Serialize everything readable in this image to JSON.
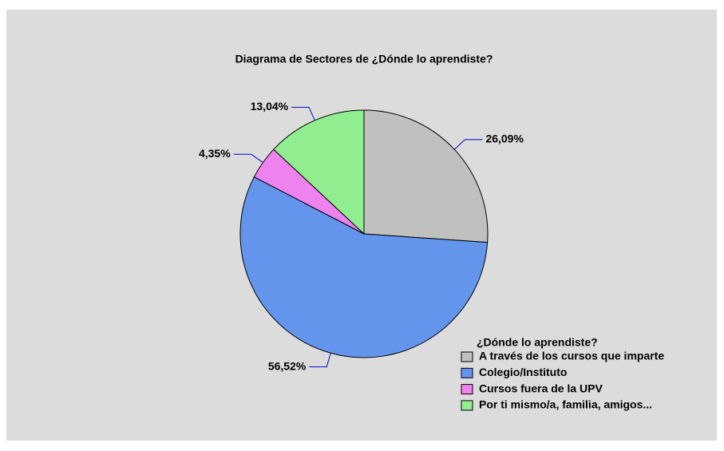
{
  "chart_data": {
    "type": "pie",
    "title": "Diagrama de Sectores de ¿Dónde lo aprendiste?",
    "legend_title": "¿Dónde lo aprendiste?",
    "categories": [
      "A través de los cursos que imparte",
      "Colegio/Instituto",
      "Cursos fuera de la UPV",
      "Por ti mismo/a, familia, amigos..."
    ],
    "values": [
      26.09,
      56.52,
      4.35,
      13.04
    ],
    "value_labels": [
      "26,09%",
      "56,52%",
      "4,35%",
      "13,04%"
    ],
    "colors": [
      "#c0c0c0",
      "#6495ed",
      "#ee82ee",
      "#90ee90"
    ],
    "legend": "lower right"
  }
}
